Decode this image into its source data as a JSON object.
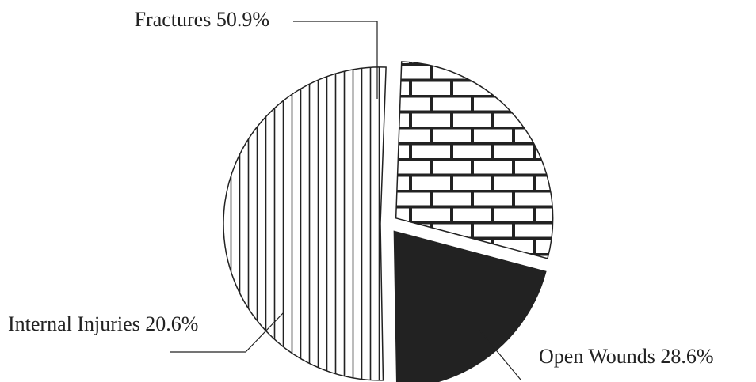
{
  "chart_data": {
    "type": "pie",
    "exploded": true,
    "slices": [
      {
        "name": "Fractures",
        "value": 50.9,
        "label": "Fractures 50.9%",
        "pattern": "vertical-lines"
      },
      {
        "name": "Open Wounds",
        "value": 28.6,
        "label": "Open Wounds 28.6%",
        "pattern": "brick"
      },
      {
        "name": "Internal Injuries",
        "value": 20.6,
        "label": "Internal Injuries 20.6%",
        "pattern": "solid",
        "color": "#222222"
      }
    ]
  }
}
